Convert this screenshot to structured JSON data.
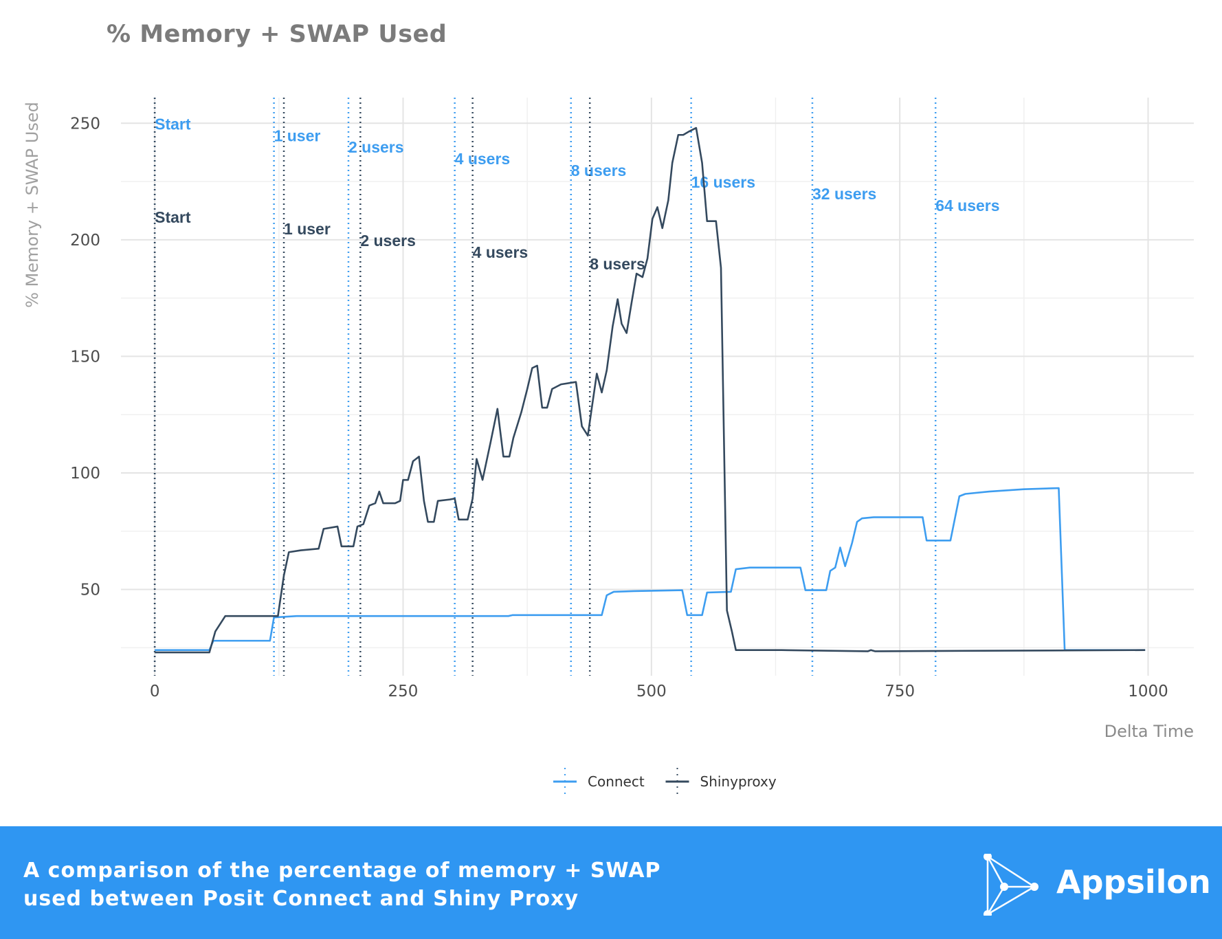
{
  "chart_data": {
    "type": "line",
    "title": "% Memory + SWAP Used",
    "xlabel": "Delta Time",
    "ylabel": "% Memory + SWAP Used",
    "xlim": [
      -34,
      1046
    ],
    "ylim": [
      13,
      261
    ],
    "x_ticks": [
      0,
      250,
      500,
      750,
      1000
    ],
    "y_ticks": [
      50,
      100,
      150,
      200,
      250
    ],
    "grid": true,
    "legend_position": "bottom",
    "colors": {
      "Connect": "#3d9df0",
      "Shinyproxy": "#34495e"
    },
    "series": [
      {
        "name": "Connect",
        "points": [
          [
            0,
            24
          ],
          [
            55,
            24
          ],
          [
            59,
            28
          ],
          [
            116,
            28
          ],
          [
            120,
            38
          ],
          [
            143,
            38.6
          ],
          [
            356,
            38.6
          ],
          [
            360,
            39
          ],
          [
            450,
            39
          ],
          [
            455,
            47.5
          ],
          [
            462,
            49
          ],
          [
            482,
            49.3
          ],
          [
            531,
            49.7
          ],
          [
            536,
            39
          ],
          [
            551,
            39
          ],
          [
            556,
            48.7
          ],
          [
            580,
            49
          ],
          [
            585,
            58.7
          ],
          [
            599,
            59.4
          ],
          [
            650,
            59.4
          ],
          [
            655,
            49.7
          ],
          [
            676,
            49.7
          ],
          [
            680,
            58
          ],
          [
            685,
            59.4
          ],
          [
            690,
            68
          ],
          [
            695,
            60
          ],
          [
            702,
            70
          ],
          [
            707,
            79
          ],
          [
            712,
            80.5
          ],
          [
            724,
            81
          ],
          [
            773,
            81
          ],
          [
            777,
            71
          ],
          [
            801,
            71
          ],
          [
            810,
            90
          ],
          [
            816,
            91
          ],
          [
            840,
            92
          ],
          [
            875,
            93
          ],
          [
            910,
            93.5
          ],
          [
            916,
            24
          ],
          [
            997,
            24
          ]
        ]
      },
      {
        "name": "Shinyproxy",
        "points": [
          [
            0,
            23
          ],
          [
            55,
            23
          ],
          [
            61,
            32
          ],
          [
            71,
            38.6
          ],
          [
            124,
            38.6
          ],
          [
            130,
            56
          ],
          [
            135,
            66
          ],
          [
            147,
            66.8
          ],
          [
            165,
            67.5
          ],
          [
            170,
            76
          ],
          [
            184,
            77
          ],
          [
            188,
            68.5
          ],
          [
            200,
            68.5
          ],
          [
            204,
            77
          ],
          [
            210,
            78
          ],
          [
            216,
            86
          ],
          [
            222,
            87
          ],
          [
            226,
            92
          ],
          [
            230,
            87
          ],
          [
            242,
            87
          ],
          [
            247,
            88
          ],
          [
            250,
            97
          ],
          [
            255,
            97
          ],
          [
            260,
            105
          ],
          [
            266,
            107
          ],
          [
            271,
            88
          ],
          [
            275,
            79
          ],
          [
            281,
            79
          ],
          [
            285,
            88
          ],
          [
            297,
            88.6
          ],
          [
            302,
            89
          ],
          [
            306,
            80
          ],
          [
            315,
            80
          ],
          [
            320,
            89
          ],
          [
            324,
            106
          ],
          [
            330,
            97
          ],
          [
            338,
            113
          ],
          [
            345,
            127.5
          ],
          [
            351,
            107
          ],
          [
            357,
            107
          ],
          [
            361,
            115
          ],
          [
            369,
            126
          ],
          [
            375,
            136
          ],
          [
            380,
            145
          ],
          [
            385,
            146
          ],
          [
            390,
            128
          ],
          [
            395,
            128
          ],
          [
            400,
            136
          ],
          [
            409,
            138
          ],
          [
            424,
            139
          ],
          [
            430,
            120
          ],
          [
            436,
            116
          ],
          [
            440,
            128
          ],
          [
            445,
            142.6
          ],
          [
            450,
            134.5
          ],
          [
            455,
            144
          ],
          [
            461,
            163
          ],
          [
            466,
            174.5
          ],
          [
            470,
            164
          ],
          [
            475,
            160
          ],
          [
            480,
            173
          ],
          [
            485,
            185.5
          ],
          [
            491,
            184
          ],
          [
            496,
            192
          ],
          [
            501,
            209
          ],
          [
            506,
            214
          ],
          [
            511,
            205
          ],
          [
            517,
            217
          ],
          [
            521,
            233
          ],
          [
            527,
            245
          ],
          [
            532,
            245
          ],
          [
            538,
            246.5
          ],
          [
            545,
            248
          ],
          [
            551,
            233
          ],
          [
            556,
            208
          ],
          [
            565,
            208
          ],
          [
            570,
            188
          ],
          [
            576,
            41
          ],
          [
            581,
            32
          ],
          [
            585,
            24
          ],
          [
            631,
            24
          ],
          [
            718,
            23.5
          ],
          [
            721,
            24
          ],
          [
            725,
            23.5
          ],
          [
            997,
            24
          ]
        ]
      }
    ],
    "annotations": [
      {
        "series": "Connect",
        "x": 0,
        "y": 250,
        "text": "Start"
      },
      {
        "series": "Connect",
        "x": 120,
        "y": 245,
        "text": "1 user"
      },
      {
        "series": "Connect",
        "x": 195,
        "y": 240,
        "text": "2 users"
      },
      {
        "series": "Connect",
        "x": 302,
        "y": 235,
        "text": "4 users"
      },
      {
        "series": "Connect",
        "x": 419,
        "y": 230,
        "text": "8 users"
      },
      {
        "series": "Connect",
        "x": 540,
        "y": 225,
        "text": "16 users"
      },
      {
        "series": "Connect",
        "x": 662,
        "y": 220,
        "text": "32 users"
      },
      {
        "series": "Connect",
        "x": 786,
        "y": 215,
        "text": "64 users"
      },
      {
        "series": "Shinyproxy",
        "x": 0,
        "y": 210,
        "text": "Start"
      },
      {
        "series": "Shinyproxy",
        "x": 130,
        "y": 205,
        "text": "1 user"
      },
      {
        "series": "Shinyproxy",
        "x": 207,
        "y": 200,
        "text": "2 users"
      },
      {
        "series": "Shinyproxy",
        "x": 320,
        "y": 195,
        "text": "4 users"
      },
      {
        "series": "Shinyproxy",
        "x": 438,
        "y": 190,
        "text": "8 users"
      }
    ]
  },
  "banner": {
    "caption_line1": "A comparison of the percentage of memory + SWAP",
    "caption_line2": "used between Posit Connect and Shiny Proxy",
    "brand": "Appsilon",
    "color": "#2f96f2"
  }
}
